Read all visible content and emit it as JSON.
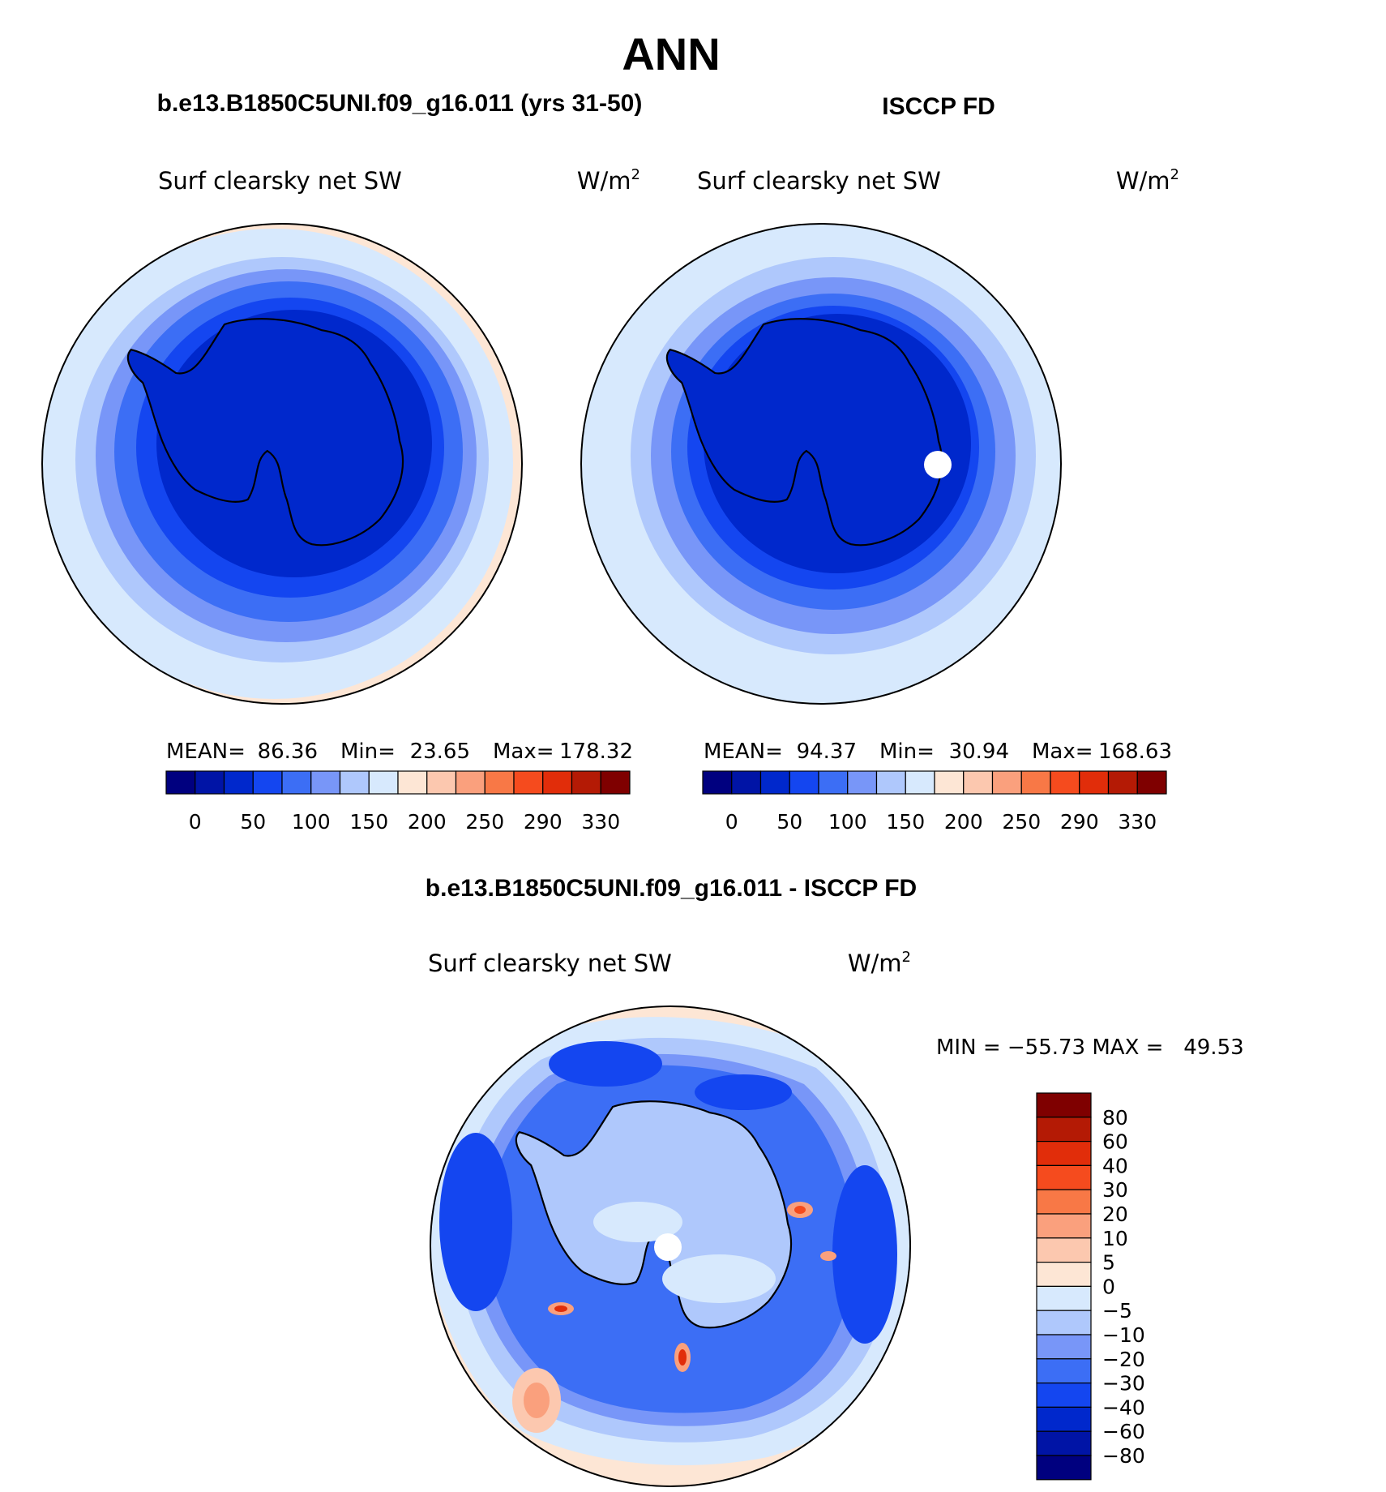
{
  "page_title": "ANN",
  "palette_main": [
    "#00007f",
    "#0014a6",
    "#0028cc",
    "#1446f0",
    "#3c6ef5",
    "#7896f8",
    "#afc8fc",
    "#d7e9fd",
    "#fde6d5",
    "#fcc8af",
    "#faa07d",
    "#f87846",
    "#f54b1e",
    "#e12d0a",
    "#b41a05",
    "#7f0000"
  ],
  "palette_diff": [
    "#7f0000",
    "#b41a05",
    "#e12d0a",
    "#f54b1e",
    "#f87846",
    "#faa07d",
    "#fcc8af",
    "#fde6d5",
    "#d7e9fd",
    "#afc8fc",
    "#7896f8",
    "#3c6ef5",
    "#1446f0",
    "#0028cc",
    "#0014a6",
    "#00007f"
  ],
  "panels": [
    {
      "case_title": "b.e13.B1850C5UNI.f09_g16.011 (yrs 31-50)",
      "variable": "Surf clearsky net SW",
      "units_base": "W/m",
      "units_exp": "2",
      "stats": {
        "mean_label": "MEAN=",
        "mean": "86.36",
        "min_label": "Min=",
        "min": "23.65",
        "max_label": "Max=",
        "max": "178.32"
      },
      "levels": [
        "0",
        "50",
        "100",
        "150",
        "200",
        "250",
        "290",
        "330"
      ],
      "south_pole_missing": false
    },
    {
      "case_title": "ISCCP FD",
      "variable": "Surf clearsky net SW",
      "units_base": "W/m",
      "units_exp": "2",
      "stats": {
        "mean_label": "MEAN=",
        "mean": "94.37",
        "min_label": "Min=",
        "min": "30.94",
        "max_label": "Max=",
        "max": "168.63"
      },
      "levels": [
        "0",
        "50",
        "100",
        "150",
        "200",
        "250",
        "290",
        "330"
      ],
      "south_pole_missing": true
    }
  ],
  "diff_panel": {
    "case_title": "b.e13.B1850C5UNI.f09_g16.011 - ISCCP FD",
    "variable": "Surf clearsky net SW",
    "units_base": "W/m",
    "units_exp": "2",
    "range_text": "MIN = −55.73 MAX =   49.53",
    "levels": [
      "80",
      "60",
      "40",
      "30",
      "20",
      "10",
      "5",
      "0",
      "−5",
      "−10",
      "−20",
      "−30",
      "−40",
      "−60",
      "−80"
    ],
    "south_pole_missing": true
  }
}
